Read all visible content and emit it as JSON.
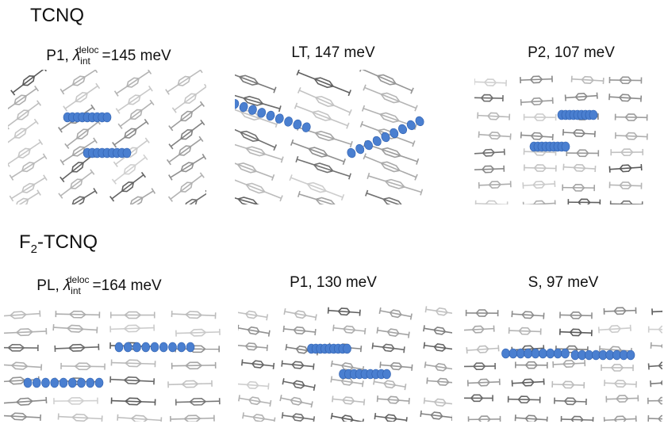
{
  "sections": [
    {
      "title": {
        "text": "TCNQ"
      },
      "panels": [
        {
          "label": {
            "prefix": "P1,",
            "symbol": "λ",
            "sub": "int",
            "sup": "deloc",
            "suffix": "=145 meV"
          }
        },
        {
          "label": {
            "text": "LT, 147 meV"
          }
        },
        {
          "label": {
            "text": "P2, 107 meV"
          }
        }
      ]
    },
    {
      "title": {
        "text": "F",
        "sub": "2",
        "rest": "-TCNQ"
      },
      "panels": [
        {
          "label": {
            "prefix": "PL,",
            "symbol": "λ",
            "sub": "int",
            "sup": "deloc",
            "suffix": "=164 meV"
          }
        },
        {
          "label": {
            "text": "P1, 130 meV"
          }
        },
        {
          "label": {
            "text": "S, 97 meV"
          }
        }
      ]
    }
  ]
}
